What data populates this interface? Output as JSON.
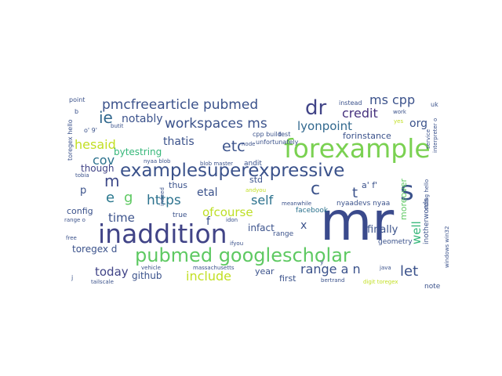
{
  "words": [
    {
      "text": "mr",
      "color": "#3a4a8c"
    },
    {
      "text": "inaddition",
      "color": "#414487"
    },
    {
      "text": "forexample",
      "color": "#7ad151"
    },
    {
      "text": "examplesuperexpressive",
      "color": "#3b528b"
    },
    {
      "text": "pubmed googlescholar",
      "color": "#5ec962"
    },
    {
      "text": "pmcfreearticle pubmed",
      "color": "#3b528b"
    },
    {
      "text": "workspaces ms",
      "color": "#3b528b"
    },
    {
      "text": "dr",
      "color": "#414487"
    },
    {
      "text": "ms cpp",
      "color": "#3b528b"
    },
    {
      "text": "s",
      "color": "#3b528b"
    },
    {
      "text": "credit",
      "color": "#46327e"
    },
    {
      "text": "lyonpoint",
      "color": "#31688e"
    },
    {
      "text": "ie",
      "color": "#31688e"
    },
    {
      "text": "hesaid",
      "color": "#c2df23"
    },
    {
      "text": "etc",
      "color": "#3b528b"
    },
    {
      "text": "notably",
      "color": "#3b528b"
    },
    {
      "text": "thatis",
      "color": "#3b528b"
    },
    {
      "text": "m",
      "color": "#3e4a89"
    },
    {
      "text": "e",
      "color": "#2a788e"
    },
    {
      "text": "g",
      "color": "#5ec962"
    },
    {
      "text": "https",
      "color": "#2c728e"
    },
    {
      "text": "self",
      "color": "#2c728e"
    },
    {
      "text": "etal",
      "color": "#3b528b"
    },
    {
      "text": "t",
      "color": "#3b528b"
    },
    {
      "text": "ofcourse",
      "color": "#bddf26"
    },
    {
      "text": "time",
      "color": "#3b528b"
    },
    {
      "text": "include",
      "color": "#c2df23"
    },
    {
      "text": "today",
      "color": "#414487"
    },
    {
      "text": "range a n",
      "color": "#3b528b"
    },
    {
      "text": "let",
      "color": "#3b528b"
    },
    {
      "text": "well",
      "color": "#35b779"
    },
    {
      "text": "finally",
      "color": "#3b528b"
    },
    {
      "text": "org",
      "color": "#3b528b"
    },
    {
      "text": "cov",
      "color": "#2c728e"
    },
    {
      "text": "bytestring",
      "color": "#35b779"
    },
    {
      "text": "though",
      "color": "#414487"
    },
    {
      "text": "forinstance",
      "color": "#3b528b"
    },
    {
      "text": "std",
      "color": "#3b528b"
    },
    {
      "text": "thus",
      "color": "#3b528b"
    },
    {
      "text": "config",
      "color": "#3b528b"
    },
    {
      "text": "toregex d",
      "color": "#3b528b"
    },
    {
      "text": "github",
      "color": "#3b528b"
    },
    {
      "text": "infact",
      "color": "#3b528b"
    },
    {
      "text": "x",
      "color": "#3b528b"
    },
    {
      "text": "year",
      "color": "#3b528b"
    },
    {
      "text": "first",
      "color": "#3b528b"
    },
    {
      "text": "moreover",
      "color": "#5ec962"
    },
    {
      "text": "inotherwords",
      "color": "#3b528b"
    },
    {
      "text": "geometry",
      "color": "#3b528b"
    },
    {
      "text": "note",
      "color": "#3b528b"
    },
    {
      "text": "facebook",
      "color": "#2c728e"
    },
    {
      "text": "range",
      "color": "#3b528b"
    },
    {
      "text": "nyaadevs nyaa",
      "color": "#3b528b"
    },
    {
      "text": "true",
      "color": "#3b528b"
    },
    {
      "text": "andit",
      "color": "#3b528b"
    },
    {
      "text": "toregex hello",
      "color": "#3b528b"
    },
    {
      "text": "point",
      "color": "#3b528b"
    },
    {
      "text": "cpp build",
      "color": "#3b528b"
    },
    {
      "text": "test",
      "color": "#3b528b"
    },
    {
      "text": "unfortunately",
      "color": "#3b528b"
    },
    {
      "text": "instead",
      "color": "#3b528b"
    },
    {
      "text": "uk",
      "color": "#3b528b"
    },
    {
      "text": "work",
      "color": "#3b528b"
    },
    {
      "text": "yes",
      "color": "#c2df23"
    },
    {
      "text": "service",
      "color": "#3b528b"
    },
    {
      "text": "interpreter o",
      "color": "#3b528b"
    },
    {
      "text": "string hello",
      "color": "#3b528b"
    },
    {
      "text": "windows win32",
      "color": "#3b528b"
    },
    {
      "text": "nyaa blob",
      "color": "#3b528b"
    },
    {
      "text": "blob master",
      "color": "#3b528b"
    },
    {
      "text": "vehicle",
      "color": "#3b528b"
    },
    {
      "text": "node",
      "color": "#3b528b"
    },
    {
      "text": "meanwhile",
      "color": "#3b528b"
    },
    {
      "text": "massachusetts",
      "color": "#3b528b"
    },
    {
      "text": "tailscale",
      "color": "#3b528b"
    },
    {
      "text": "bertrand",
      "color": "#3b528b"
    },
    {
      "text": "digit toregex",
      "color": "#c2df23"
    },
    {
      "text": "ifyou",
      "color": "#3b528b"
    },
    {
      "text": "idon",
      "color": "#3b528b"
    },
    {
      "text": "andyou",
      "color": "#c2df23"
    },
    {
      "text": "indeed",
      "color": "#3b528b"
    },
    {
      "text": "tobia",
      "color": "#3b528b"
    },
    {
      "text": "butit",
      "color": "#3b528b"
    },
    {
      "text": "free",
      "color": "#3b528b"
    },
    {
      "text": "range o",
      "color": "#3b528b"
    },
    {
      "text": "java",
      "color": "#3b528b"
    },
    {
      "text": "f",
      "color": "#3b528b"
    },
    {
      "text": "c",
      "color": "#3b528b"
    },
    {
      "text": "p",
      "color": "#3b528b"
    },
    {
      "text": "b",
      "color": "#3b528b"
    },
    {
      "text": "j",
      "color": "#3b528b"
    },
    {
      "text": "y",
      "color": "#3b528b"
    },
    {
      "text": "a' f'",
      "color": "#3b528b"
    },
    {
      "text": "o' 9'",
      "color": "#3b528b"
    }
  ]
}
